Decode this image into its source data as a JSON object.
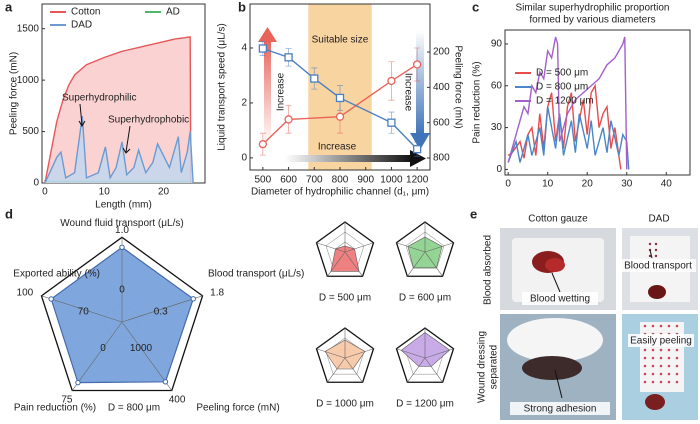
{
  "chart_data": [
    {
      "type": "line",
      "label": "a",
      "xlabel": "Length (mm)",
      "ylabel": "Peeling force (mN)",
      "xlim": [
        -0.5,
        27
      ],
      "ylim": [
        0,
        1740
      ],
      "xticks": [
        0,
        10,
        20
      ],
      "yticks": [
        0,
        500,
        1000,
        1500
      ],
      "legend": "top",
      "annotations": [
        "Superhydrophilic",
        "Superhydrophobic"
      ],
      "series": [
        {
          "name": "Cotton",
          "color": "#e8585a",
          "fill": "#f9caca",
          "x": [
            0,
            1,
            2,
            3,
            4,
            5,
            7,
            10,
            13,
            16,
            19,
            22,
            24.5,
            24.6
          ],
          "values": [
            0,
            300,
            600,
            800,
            950,
            1050,
            1150,
            1220,
            1280,
            1320,
            1360,
            1400,
            1420,
            0
          ]
        },
        {
          "name": "AD",
          "color": "#4cb86a",
          "x": [
            0,
            25
          ],
          "values": [
            15,
            15
          ]
        },
        {
          "name": "DAD",
          "color": "#6b9bd1",
          "fill": "#c3d7ee",
          "x": [
            0,
            2,
            2.7,
            3.5,
            5,
            6.3,
            7,
            9,
            10.2,
            11,
            12,
            13,
            13.8,
            15,
            15.8,
            17,
            18.2,
            19,
            21,
            22.5,
            23,
            24,
            24.5,
            25
          ],
          "values": [
            0,
            250,
            300,
            50,
            100,
            650,
            50,
            100,
            350,
            50,
            150,
            400,
            80,
            150,
            320,
            100,
            200,
            380,
            150,
            450,
            100,
            300,
            500,
            0
          ]
        }
      ]
    },
    {
      "type": "line",
      "label": "b",
      "xlabel": "Diameter of hydrophilic channel (d₁, μm)",
      "ylabel": "Liquid transport speed (μL/s)",
      "y2label": "Peeling force (mN)",
      "categories": [
        "500",
        "600",
        "700",
        "800",
        "900",
        "1000",
        "1200"
      ],
      "ylim": [
        -0.44,
        5.6
      ],
      "yticks": [
        0,
        2,
        4
      ],
      "y2lim": [
        868,
        -72
      ],
      "y2ticks": [
        200,
        400,
        600,
        800
      ],
      "annotations": [
        "Suitable size",
        "Increase",
        "Increase",
        "Increase"
      ],
      "series": [
        {
          "color": "#e8645a",
          "marker": "circle",
          "x": [
            "500",
            "600",
            "800",
            "1000",
            "1200"
          ],
          "values": [
            0.5,
            1.4,
            1.5,
            2.8,
            3.4
          ],
          "errors": [
            0.4,
            0.5,
            0.6,
            0.7,
            0.6
          ]
        },
        {
          "color": "#4a7fc1",
          "marker": "square",
          "axis": "y2",
          "x": [
            "500",
            "600",
            "700",
            "800",
            "1000",
            "1200"
          ],
          "values": [
            180,
            230,
            350,
            460,
            600,
            750
          ],
          "errors": [
            40,
            50,
            60,
            70,
            60,
            40
          ]
        }
      ]
    },
    {
      "type": "line",
      "label": "c",
      "title": [
        "Similar superhydrophilic proportion",
        "formed by various diameters"
      ],
      "ylabel": "Pain reduction (%)",
      "xlim": [
        -0.8,
        46
      ],
      "ylim": [
        -4,
        100
      ],
      "xticks": [
        0,
        10,
        20,
        30,
        40
      ],
      "yticks": [
        0,
        30,
        60,
        90
      ],
      "legend": "left",
      "series": [
        {
          "name": "D = 500 μm",
          "color": "#e84c4c",
          "x": [
            0,
            1,
            3,
            4,
            5,
            6,
            7,
            8,
            9,
            10,
            11,
            12,
            13,
            14,
            15,
            16,
            17,
            18,
            19,
            20,
            21,
            22,
            23,
            24,
            25,
            26,
            27,
            28,
            28.5
          ],
          "values": [
            10,
            12,
            20,
            8,
            25,
            30,
            10,
            40,
            15,
            45,
            55,
            20,
            40,
            15,
            45,
            55,
            20,
            35,
            50,
            25,
            55,
            60,
            30,
            40,
            45,
            15,
            30,
            10,
            0
          ]
        },
        {
          "name": "D = 800 μm",
          "color": "#4a86c8",
          "x": [
            0,
            2,
            3,
            5,
            6,
            8,
            9,
            10,
            12,
            13,
            14,
            16,
            17,
            18,
            20,
            21,
            22,
            24,
            25,
            26,
            28,
            29,
            30,
            30.5
          ],
          "values": [
            5,
            20,
            5,
            25,
            10,
            30,
            10,
            45,
            15,
            40,
            10,
            35,
            12,
            40,
            15,
            35,
            10,
            30,
            12,
            35,
            10,
            25,
            20,
            0
          ]
        },
        {
          "name": "D = 1200 μm",
          "color": "#a55fc9",
          "x": [
            0,
            2,
            4,
            5,
            6,
            7,
            8,
            9,
            10,
            11,
            12,
            12.5,
            13,
            14,
            15,
            17,
            19,
            21,
            23,
            25,
            27,
            28,
            29,
            29.5,
            30
          ],
          "values": [
            5,
            25,
            45,
            40,
            60,
            55,
            70,
            65,
            85,
            80,
            95,
            90,
            20,
            30,
            40,
            50,
            55,
            60,
            65,
            75,
            80,
            85,
            90,
            95,
            0
          ]
        }
      ]
    },
    {
      "type": "radar",
      "label": "d",
      "axes": [
        {
          "name": "Wound fluid transport (μL/s)",
          "min": 0,
          "max": {
            "value": 1,
            "label": "1.0"
          }
        },
        {
          "name": "Blood transport (μL/s)",
          "min": 0.3,
          "max": 1.8
        },
        {
          "name": "Peeling force (mN)",
          "min": 1000,
          "max": 400
        },
        {
          "name": "Pain reduction (%)",
          "min": 0,
          "max": 75
        },
        {
          "name": "Exported ability (%)",
          "min": 70,
          "max": 100
        }
      ],
      "series": [
        {
          "name": "D = 800 μm",
          "color": "#7aa3dc",
          "values": [
            0.97,
            1.76,
            424,
            73,
            99
          ]
        },
        {
          "name": "D = 500 μm",
          "color": "#f07b7b",
          "values": [
            0.2,
            0.8,
            520,
            60,
            80
          ]
        },
        {
          "name": "D = 600 μm",
          "color": "#8fd28f",
          "values": [
            0.5,
            1.2,
            610,
            49,
            88
          ]
        },
        {
          "name": "D = 1000 μm",
          "color": "#f8c9a8",
          "values": [
            0.6,
            1.35,
            730,
            34,
            91
          ]
        },
        {
          "name": "D = 1200 μm",
          "color": "#c6a7e6",
          "values": [
            0.85,
            1.6,
            790,
            26,
            95
          ]
        }
      ]
    }
  ],
  "photo_panel": {
    "label": "e",
    "columns": [
      "Cotton gauze",
      "DAD"
    ],
    "rows": [
      [
        "Blood absorbed"
      ],
      [
        "Wound dressing",
        "separated"
      ]
    ],
    "notes": [
      "Blood wetting",
      "Blood transport",
      "Strong adhesion",
      "Easily peeling"
    ]
  }
}
